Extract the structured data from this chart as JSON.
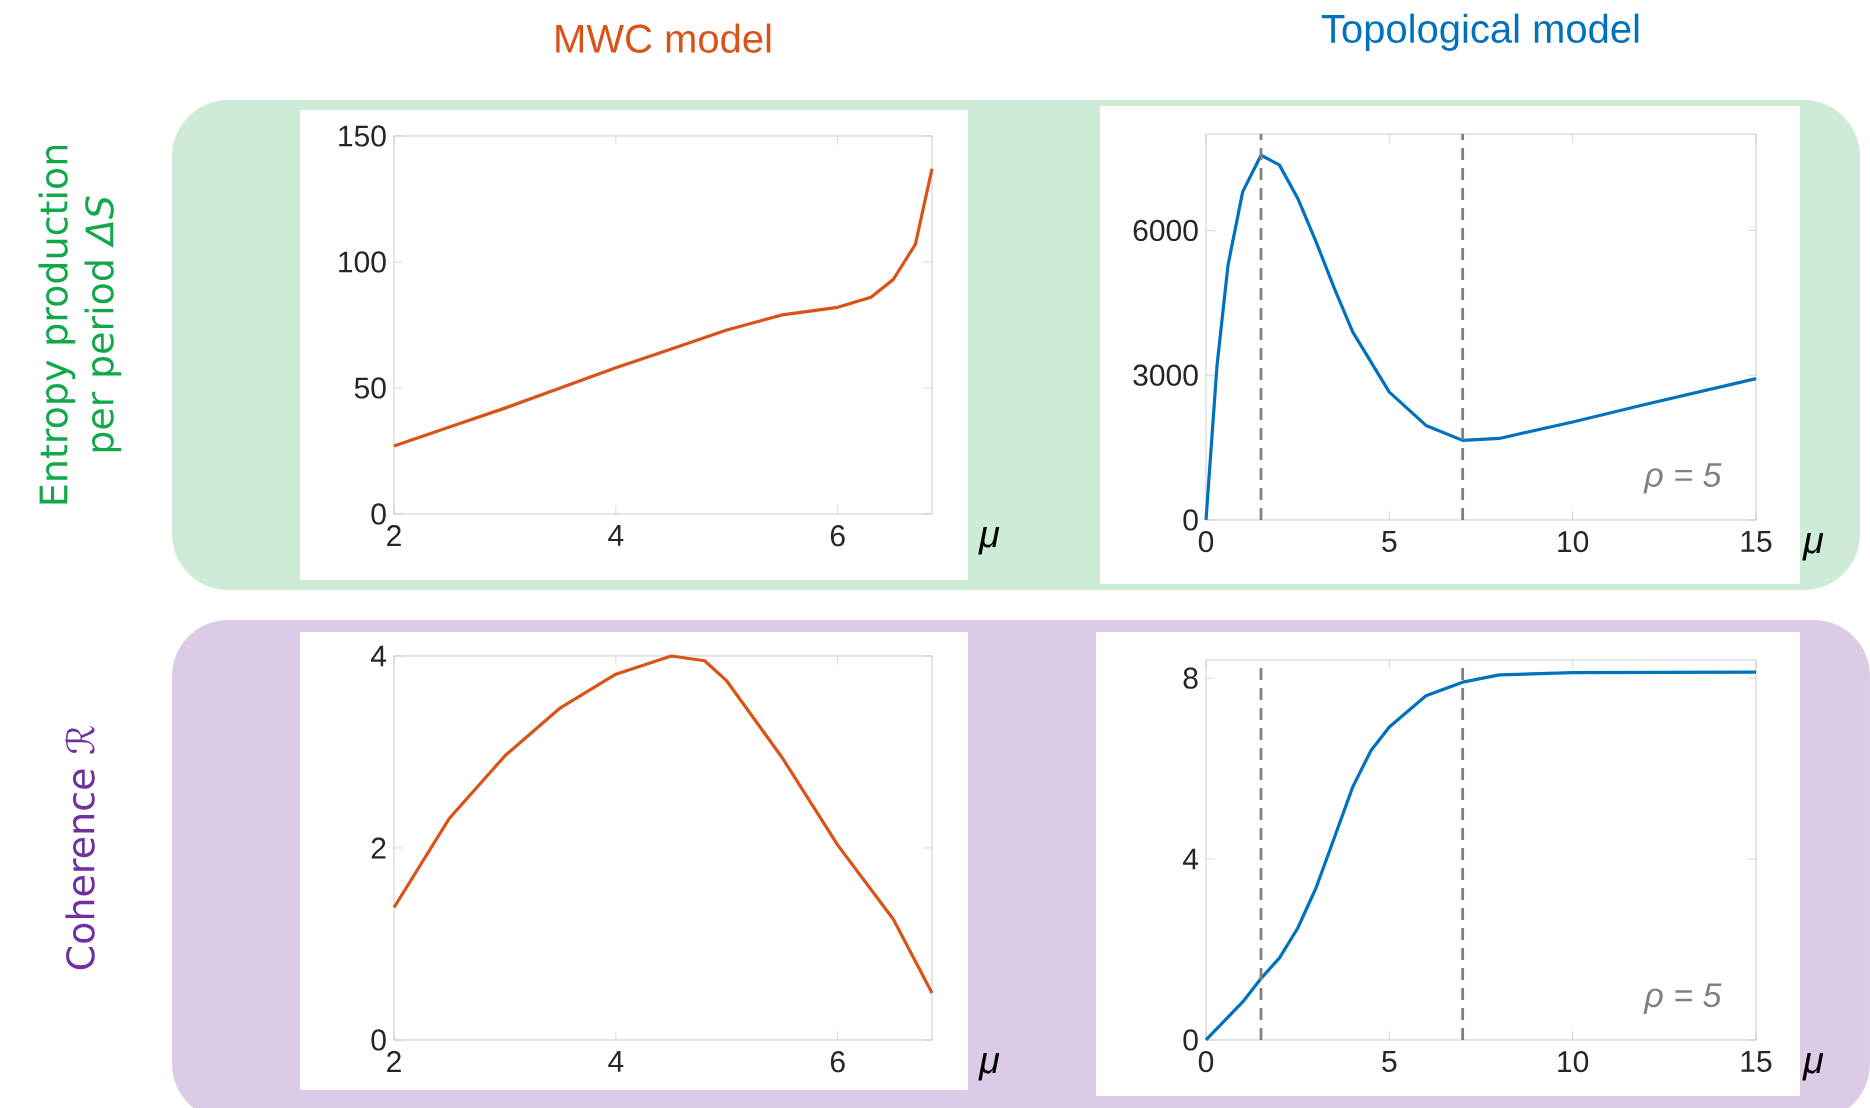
{
  "chart_data": [
    {
      "type": "line",
      "title": "MWC model",
      "ylabel": "Entropy production per period *ΔS*",
      "xlabel": "μ",
      "x": [
        2,
        2.5,
        3,
        3.5,
        4,
        4.5,
        5,
        5.5,
        6,
        6.3,
        6.5,
        6.7,
        6.85
      ],
      "series": [
        {
          "color": "#d95319",
          "values": [
            27,
            34.5,
            42,
            50,
            58,
            65.5,
            73,
            79,
            82,
            86,
            93,
            107,
            137
          ]
        }
      ],
      "xlim": [
        2,
        6.85
      ],
      "ylim": [
        0,
        150
      ],
      "xticks": [
        2,
        4,
        6
      ],
      "yticks": [
        0,
        50,
        100,
        150
      ]
    },
    {
      "type": "line",
      "title": "Topological model",
      "xlabel": "μ",
      "x": [
        0,
        0.3,
        0.6,
        1,
        1.5,
        2,
        2.5,
        3,
        3.5,
        4,
        5,
        6,
        7,
        8,
        10,
        12,
        15
      ],
      "series": [
        {
          "color": "#0072bd",
          "values": [
            0,
            3200,
            5280,
            6800,
            7560,
            7360,
            6670,
            5770,
            4800,
            3900,
            2650,
            1960,
            1650,
            1690,
            2030,
            2400,
            2930
          ]
        }
      ],
      "xlim": [
        0,
        15
      ],
      "ylim": [
        0,
        8000
      ],
      "xticks": [
        0,
        5,
        10,
        15
      ],
      "yticks": [
        0,
        3000,
        6000
      ],
      "ref_lines": [
        {
          "axis": "x",
          "value": 1.5,
          "color": "#808080",
          "line_style": "dashed"
        },
        {
          "axis": "x",
          "value": 7.0,
          "color": "#808080",
          "line_style": "dashed"
        }
      ],
      "annotations": [
        "ρ = 5"
      ]
    },
    {
      "type": "line",
      "ylabel": "Coherence ℛ",
      "xlabel": "μ",
      "x": [
        2,
        2.5,
        3,
        3.5,
        4,
        4.5,
        4.8,
        5,
        5.5,
        6,
        6.5,
        6.85
      ],
      "series": [
        {
          "color": "#d95319",
          "values": [
            1.38,
            2.31,
            2.96,
            3.46,
            3.81,
            4.0,
            3.95,
            3.74,
            2.94,
            2.03,
            1.26,
            0.49
          ]
        }
      ],
      "xlim": [
        2,
        6.85
      ],
      "ylim": [
        0,
        4
      ],
      "xticks": [
        2,
        4,
        6
      ],
      "yticks": [
        0,
        2,
        4
      ]
    },
    {
      "type": "line",
      "xlabel": "μ",
      "x": [
        0,
        1,
        1.5,
        2,
        2.5,
        3,
        3.5,
        4,
        4.5,
        5,
        6,
        7,
        8,
        10,
        15
      ],
      "series": [
        {
          "color": "#0072bd",
          "values": [
            0,
            0.84,
            1.36,
            1.81,
            2.47,
            3.36,
            4.47,
            5.59,
            6.4,
            6.92,
            7.61,
            7.91,
            8.07,
            8.12,
            8.13
          ]
        }
      ],
      "xlim": [
        0,
        15
      ],
      "ylim": [
        0,
        8.4
      ],
      "xticks": [
        0,
        5,
        10,
        15
      ],
      "yticks": [
        0,
        4,
        8
      ],
      "ref_lines": [
        {
          "axis": "x",
          "value": 1.5,
          "color": "#808080",
          "line_style": "dashed"
        },
        {
          "axis": "x",
          "value": 7.0,
          "color": "#808080",
          "line_style": "dashed"
        }
      ],
      "annotations": [
        "ρ = 5"
      ]
    }
  ]
}
